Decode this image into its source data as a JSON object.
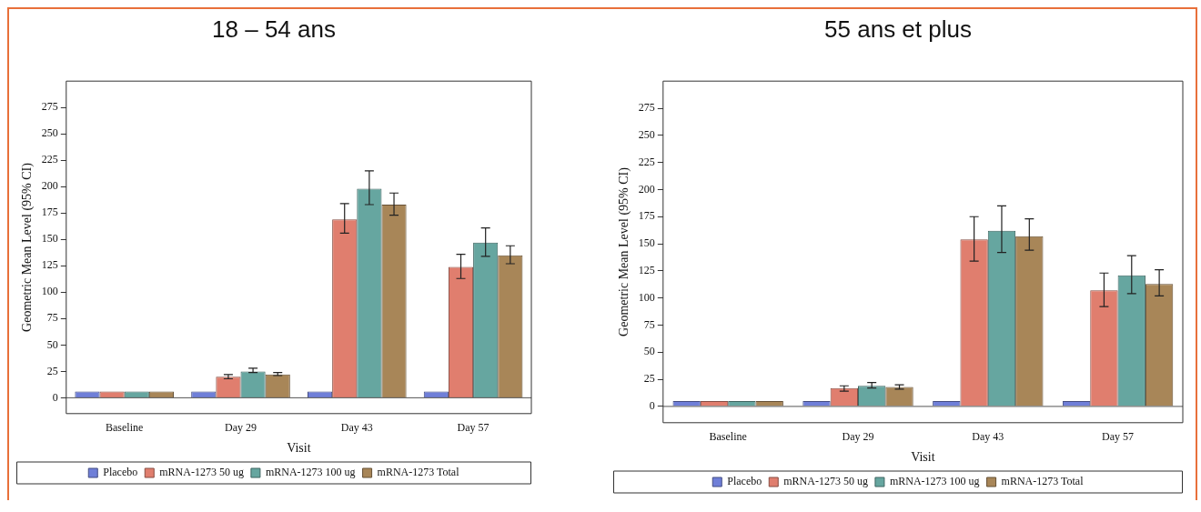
{
  "chart_data": [
    {
      "type": "bar",
      "title": "18 – 54 ans",
      "xlabel": "Visit",
      "ylabel": "Geometric Mean Level (95% CI)",
      "categories": [
        "Baseline",
        "Day 29",
        "Day 43",
        "Day 57"
      ],
      "ylim": [
        -15,
        300
      ],
      "yticks": [
        0,
        25,
        50,
        75,
        100,
        125,
        150,
        175,
        200,
        225,
        250,
        275
      ],
      "legend": "bottom",
      "ref_lines": [
        {
          "axis": "y",
          "value": 0
        }
      ],
      "series": [
        {
          "name": "Placebo",
          "color": "#6f7fd8",
          "values": [
            6,
            6,
            6,
            6
          ],
          "errors": [
            null,
            null,
            null,
            null
          ]
        },
        {
          "name": "mRNA-1273 50 ug",
          "color": "#e07e6e",
          "values": [
            6,
            20,
            169,
            124
          ],
          "errors": [
            null,
            [
              18,
              22
            ],
            [
              156,
              184
            ],
            [
              113,
              136
            ]
          ]
        },
        {
          "name": "mRNA-1273 100 ug",
          "color": "#66a6a0",
          "values": [
            6,
            25,
            198,
            147
          ],
          "errors": [
            null,
            [
              24,
              28
            ],
            [
              183,
              215
            ],
            [
              134,
              161
            ]
          ]
        },
        {
          "name": "mRNA-1273 Total",
          "color": "#a88658",
          "values": [
            6,
            22,
            183,
            135
          ],
          "errors": [
            null,
            [
              21,
              24
            ],
            [
              173,
              194
            ],
            [
              127,
              144
            ]
          ]
        }
      ]
    },
    {
      "type": "bar",
      "title": "55 ans et plus",
      "xlabel": "Visit",
      "ylabel": "Geometric Mean Level (95% CI)",
      "categories": [
        "Baseline",
        "Day 29",
        "Day 43",
        "Day 57"
      ],
      "ylim": [
        -15,
        300
      ],
      "yticks": [
        0,
        25,
        50,
        75,
        100,
        125,
        150,
        175,
        200,
        225,
        250,
        275
      ],
      "legend": "bottom",
      "ref_lines": [
        {
          "axis": "y",
          "value": 0
        }
      ],
      "series": [
        {
          "name": "Placebo",
          "color": "#6f7fd8",
          "values": [
            5,
            5,
            5,
            5
          ],
          "errors": [
            null,
            null,
            null,
            null
          ]
        },
        {
          "name": "mRNA-1273 50 ug",
          "color": "#e07e6e",
          "values": [
            5,
            17,
            154,
            107
          ],
          "errors": [
            null,
            [
              14,
              19
            ],
            [
              134,
              175
            ],
            [
              92,
              123
            ]
          ]
        },
        {
          "name": "mRNA-1273 100 ug",
          "color": "#66a6a0",
          "values": [
            5,
            19,
            162,
            121
          ],
          "errors": [
            null,
            [
              17,
              22
            ],
            [
              142,
              185
            ],
            [
              104,
              139
            ]
          ]
        },
        {
          "name": "mRNA-1273 Total",
          "color": "#a88658",
          "values": [
            5,
            18,
            157,
            113
          ],
          "errors": [
            null,
            [
              16,
              20
            ],
            [
              144,
              173
            ],
            [
              102,
              126
            ]
          ]
        }
      ]
    }
  ]
}
